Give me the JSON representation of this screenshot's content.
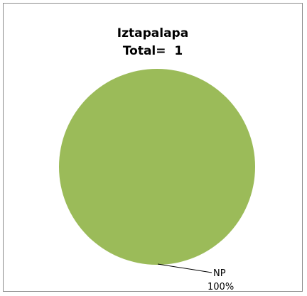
{
  "chart_data": {
    "type": "pie",
    "title": "Iztapalapa",
    "subtitle": "Total=  1",
    "slices": [
      {
        "label": "NP",
        "value": 1,
        "percent_label": "100%",
        "color": "#9bbb59"
      }
    ]
  }
}
